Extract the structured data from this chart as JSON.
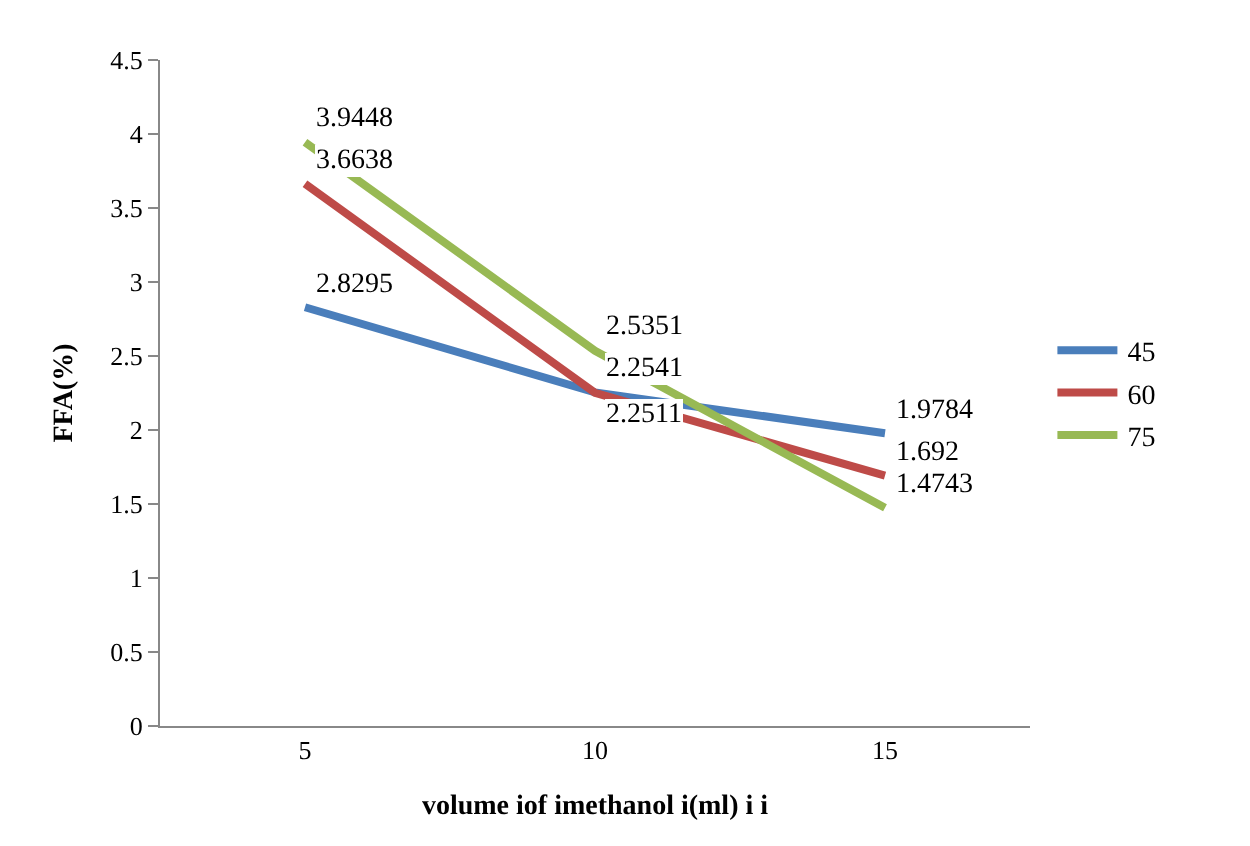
{
  "chart_data": {
    "type": "line",
    "xlabel": "volume iof imethanol i(ml) i i",
    "ylabel": "FFA(%)",
    "categories": [
      "5",
      "10",
      "15"
    ],
    "series": [
      {
        "name": "45",
        "color": "#4a7ebb",
        "values": [
          2.8295,
          2.2541,
          1.9784
        ]
      },
      {
        "name": "60",
        "color": "#be4b48",
        "values": [
          3.6638,
          2.2511,
          1.692
        ]
      },
      {
        "name": "75",
        "color": "#98b954",
        "values": [
          3.9448,
          2.5351,
          1.4743
        ]
      }
    ],
    "ylim": [
      0,
      4.5
    ],
    "yticks": [
      0,
      0.5,
      1,
      1.5,
      2,
      2.5,
      3,
      3.5,
      4,
      4.5
    ],
    "legend": "right",
    "marker": "none",
    "line_style": "solid",
    "data_labels": true
  }
}
